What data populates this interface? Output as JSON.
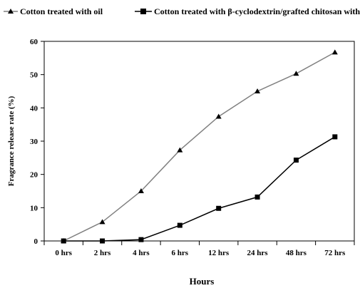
{
  "chart_data": {
    "type": "line",
    "title": "",
    "xlabel": "Hours",
    "ylabel": "Fragrance release rate (%)",
    "categories": [
      "0 hrs",
      "2 hrs",
      "4 hrs",
      "6 hrs",
      "12 hrs",
      "24 hrs",
      "48 hrs",
      "72 hrs"
    ],
    "ylim": [
      0,
      60
    ],
    "yticks": [
      "0",
      "10",
      "20",
      "30",
      "40",
      "50",
      "60"
    ],
    "grid": false,
    "legend_position": "top",
    "series": [
      {
        "name": "Cotton treated with oil",
        "marker": "triangle",
        "line_color": "#808080",
        "marker_color": "#000000",
        "values": [
          0,
          5.7,
          15.0,
          27.3,
          37.4,
          45.0,
          50.3,
          56.7
        ]
      },
      {
        "name": "Cotton treated with β-cyclodextrin/grafted chitosan with oil",
        "marker": "square",
        "line_color": "#000000",
        "marker_color": "#000000",
        "values": [
          0,
          0,
          0.4,
          4.7,
          9.8,
          13.2,
          24.3,
          31.3
        ]
      }
    ]
  }
}
